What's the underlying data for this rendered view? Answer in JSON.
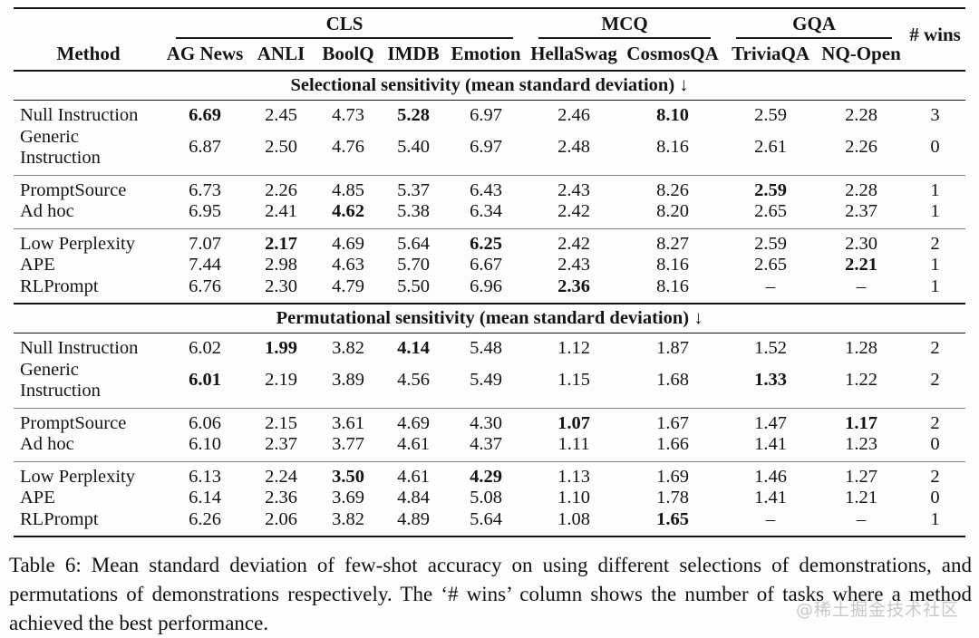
{
  "table": {
    "method_header": "Method",
    "wins_header": "# wins",
    "groups": [
      {
        "label": "CLS",
        "span": 5
      },
      {
        "label": "MCQ",
        "span": 2
      },
      {
        "label": "GQA",
        "span": 2
      }
    ],
    "columns": [
      "AG News",
      "ANLI",
      "BoolQ",
      "IMDB",
      "Emotion",
      "HellaSwag",
      "CosmosQA",
      "TriviaQA",
      "NQ-Open"
    ],
    "sections": [
      {
        "title": "Selectional sensitivity (mean standard deviation) ↓",
        "groups": [
          {
            "rows": [
              {
                "method": "Null Instruction",
                "values": [
                  "6.69",
                  "2.45",
                  "4.73",
                  "5.28",
                  "6.97",
                  "2.46",
                  "8.10",
                  "2.59",
                  "2.28"
                ],
                "bold": [
                  0,
                  3,
                  6
                ],
                "wins": "3"
              },
              {
                "method": "Generic Instruction",
                "values": [
                  "6.87",
                  "2.50",
                  "4.76",
                  "5.40",
                  "6.97",
                  "2.48",
                  "8.16",
                  "2.61",
                  "2.26"
                ],
                "bold": [],
                "wins": "0"
              }
            ]
          },
          {
            "rows": [
              {
                "method": "PromptSource",
                "values": [
                  "6.73",
                  "2.26",
                  "4.85",
                  "5.37",
                  "6.43",
                  "2.43",
                  "8.26",
                  "2.59",
                  "2.28"
                ],
                "bold": [
                  7
                ],
                "wins": "1"
              },
              {
                "method": "Ad hoc",
                "values": [
                  "6.95",
                  "2.41",
                  "4.62",
                  "5.38",
                  "6.34",
                  "2.42",
                  "8.20",
                  "2.65",
                  "2.37"
                ],
                "bold": [
                  2
                ],
                "wins": "1"
              }
            ]
          },
          {
            "rows": [
              {
                "method": "Low Perplexity",
                "values": [
                  "7.07",
                  "2.17",
                  "4.69",
                  "5.64",
                  "6.25",
                  "2.42",
                  "8.27",
                  "2.59",
                  "2.30"
                ],
                "bold": [
                  1,
                  4
                ],
                "wins": "2"
              },
              {
                "method": "APE",
                "values": [
                  "7.44",
                  "2.98",
                  "4.63",
                  "5.70",
                  "6.67",
                  "2.43",
                  "8.16",
                  "2.65",
                  "2.21"
                ],
                "bold": [
                  8
                ],
                "wins": "1"
              },
              {
                "method": "RLPrompt",
                "values": [
                  "6.76",
                  "2.30",
                  "4.79",
                  "5.50",
                  "6.96",
                  "2.36",
                  "8.16",
                  "–",
                  "–"
                ],
                "bold": [
                  5
                ],
                "wins": "1"
              }
            ]
          }
        ]
      },
      {
        "title": "Permutational sensitivity (mean standard deviation) ↓",
        "groups": [
          {
            "rows": [
              {
                "method": "Null Instruction",
                "values": [
                  "6.02",
                  "1.99",
                  "3.82",
                  "4.14",
                  "5.48",
                  "1.12",
                  "1.87",
                  "1.52",
                  "1.28"
                ],
                "bold": [
                  1,
                  3
                ],
                "wins": "2"
              },
              {
                "method": "Generic Instruction",
                "values": [
                  "6.01",
                  "2.19",
                  "3.89",
                  "4.56",
                  "5.49",
                  "1.15",
                  "1.68",
                  "1.33",
                  "1.22"
                ],
                "bold": [
                  0,
                  7
                ],
                "wins": "2"
              }
            ]
          },
          {
            "rows": [
              {
                "method": "PromptSource",
                "values": [
                  "6.06",
                  "2.15",
                  "3.61",
                  "4.69",
                  "4.30",
                  "1.07",
                  "1.67",
                  "1.47",
                  "1.17"
                ],
                "bold": [
                  5,
                  8
                ],
                "wins": "2"
              },
              {
                "method": "Ad hoc",
                "values": [
                  "6.10",
                  "2.37",
                  "3.77",
                  "4.61",
                  "4.37",
                  "1.11",
                  "1.66",
                  "1.41",
                  "1.23"
                ],
                "bold": [],
                "wins": "0"
              }
            ]
          },
          {
            "rows": [
              {
                "method": "Low Perplexity",
                "values": [
                  "6.13",
                  "2.24",
                  "3.50",
                  "4.61",
                  "4.29",
                  "1.13",
                  "1.69",
                  "1.46",
                  "1.27"
                ],
                "bold": [
                  2,
                  4
                ],
                "wins": "2"
              },
              {
                "method": "APE",
                "values": [
                  "6.14",
                  "2.36",
                  "3.69",
                  "4.84",
                  "5.08",
                  "1.10",
                  "1.78",
                  "1.41",
                  "1.21"
                ],
                "bold": [],
                "wins": "0"
              },
              {
                "method": "RLPrompt",
                "values": [
                  "6.26",
                  "2.06",
                  "3.82",
                  "4.89",
                  "5.64",
                  "1.08",
                  "1.65",
                  "–",
                  "–"
                ],
                "bold": [
                  6
                ],
                "wins": "1"
              }
            ]
          }
        ]
      }
    ]
  },
  "caption": "Table 6: Mean standard deviation of few-shot accuracy on using different selections of demonstrations, and permutations of demonstrations respectively. The ‘# wins’ column shows the number of tasks where a method achieved the best performance.",
  "watermark": "@稀土掘金技术社区"
}
